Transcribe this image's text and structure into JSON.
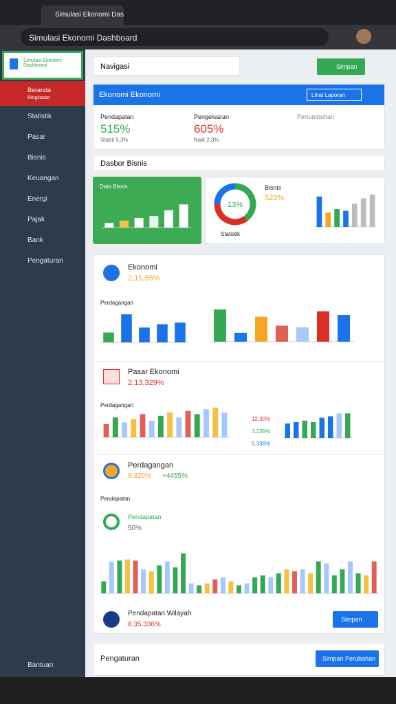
{
  "browser": {
    "tab": "Simulasi Ekonomi Dashboard",
    "title": "Simulasi Ekonomi Dashboard"
  },
  "sidebar": {
    "logo_title": "Simulasi Ekonomi",
    "logo_sub": "Dashboard",
    "active": "Beranda",
    "active_sub": "Ringkasan",
    "items": [
      "Statistik",
      "Pasar",
      "Bisnis",
      "Keuangan",
      "Energi",
      "Pajak",
      "Bank",
      "Pengaturan"
    ],
    "footer": "Bantuan"
  },
  "search": {
    "placeholder": "Navigasi"
  },
  "save_button": "Simpan",
  "overview": {
    "title": "Ekonomi Ekonomi",
    "action": "Lihat Laporan",
    "stats": [
      {
        "label": "Pendapatan",
        "value": "515%",
        "note": "Stabil 5.3%"
      },
      {
        "label": "Pengeluaran",
        "value": "605%",
        "note": "Naik 2.3%"
      },
      {
        "label": "Pertumbuhan"
      }
    ]
  },
  "section": "Dasbor Bisnis",
  "green_card": {
    "title": "Data Bisnis"
  },
  "donut": {
    "label": "13%",
    "caption": "Statistik",
    "legend": "Bisnis",
    "legend_value": "523%",
    "values": [
      40,
      35,
      25
    ],
    "colors": [
      "#34a853",
      "#d93025",
      "#1a73e8"
    ]
  },
  "cards": [
    {
      "title": "Ekonomi",
      "value": "2.15,55%",
      "sub": "Perdagangan"
    },
    {
      "title": "Pasar Ekonomi",
      "value": "2.13,329%",
      "sub": "Perdagangan"
    },
    {
      "title": "Perdagangan",
      "value": "8.320%",
      "value2": "+4455%",
      "sub": "Pendapatan"
    },
    {
      "title": "Pendapatan",
      "value": "50%"
    },
    {
      "title": "Pendapatan Wilayah",
      "value": "8.35.336%",
      "button": "Simpan"
    }
  ],
  "legend_items": [
    "12,30%",
    "3.235%",
    "5.336%"
  ],
  "bottom": {
    "title": "Pengaturan",
    "button": "Simpan Perubahan"
  },
  "charts": [
    {
      "ylim": [
        0,
        100
      ],
      "values": [
        12,
        18,
        25,
        30,
        45,
        60
      ],
      "colors": [
        "#ffffff",
        "#f6c042",
        "#ffffff",
        "#e8f5e9",
        "#ffffff",
        "#ffffff"
      ]
    },
    {
      "ylim": [
        0,
        100
      ],
      "values": [
        85,
        40,
        50,
        45,
        65,
        80,
        90
      ],
      "colors": [
        "#1a73e8",
        "#f6a623",
        "#34a853",
        "#1a73e8",
        "#bdbdbd",
        "#bdbdbd",
        "#bdbdbd"
      ]
    },
    {
      "ylim": [
        0,
        100
      ],
      "values": [
        30,
        85,
        45,
        55,
        60
      ],
      "colors": [
        "#34a853",
        "#1a73e8",
        "#1a73e8",
        "#1a73e8",
        "#1a73e8"
      ]
    },
    {
      "ylim": [
        0,
        100
      ],
      "values": [
        90,
        25,
        70,
        45,
        40,
        85,
        75
      ],
      "colors": [
        "#34a853",
        "#1a73e8",
        "#f6a623",
        "#e06055",
        "#a8c7fa",
        "#d93025",
        "#1a73e8"
      ]
    },
    {
      "ylim": [
        0,
        100
      ],
      "values": [
        40,
        60,
        45,
        55,
        70,
        50,
        65,
        75,
        60,
        80,
        70,
        85,
        90,
        75
      ],
      "colors": [
        "#e06055",
        "#34a853",
        "#a8c7fa",
        "#f6c042",
        "#e06055",
        "#a8c7fa",
        "#34a853",
        "#f6c042",
        "#a8c7fa",
        "#e06055",
        "#34a853",
        "#a8c7fa",
        "#f6c042",
        "#a8c7fa"
      ]
    },
    {
      "ylim": [
        0,
        100
      ],
      "values": [
        50,
        55,
        60,
        55,
        70,
        75,
        85,
        85
      ],
      "colors": [
        "#1a73e8",
        "#1a73e8",
        "#34a853",
        "#34a853",
        "#1a73e8",
        "#1a73e8",
        "#a8c7fa",
        "#34a853"
      ]
    },
    {
      "ylim": [
        0,
        100
      ],
      "values": [
        30,
        80,
        82,
        85,
        82,
        60,
        55,
        70,
        80,
        65,
        100,
        25,
        20,
        25,
        35,
        40,
        30,
        20,
        25,
        40,
        45,
        40,
        50,
        60,
        55,
        60,
        50,
        80,
        75,
        45,
        60,
        80,
        50,
        45,
        80
      ],
      "colors": [
        "#34a853",
        "#a8c7fa",
        "#34a853",
        "#f6c042",
        "#e06055",
        "#a8c7fa",
        "#f6c042",
        "#34a853",
        "#a8c7fa",
        "#34a853"
      ]
    }
  ]
}
